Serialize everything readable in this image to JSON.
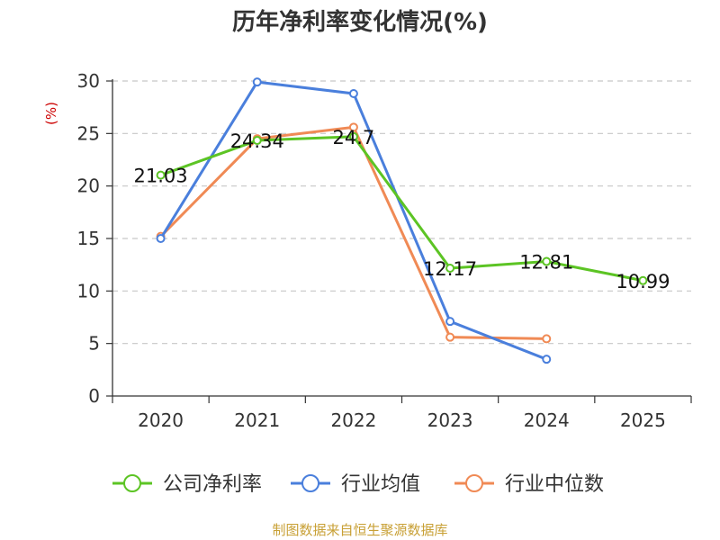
{
  "title": "历年净利率变化情况(%)",
  "source_note": "制图数据来自恒生聚源数据库",
  "chart_data": {
    "type": "line",
    "ylabel": "(%)",
    "ylim": [
      0,
      30
    ],
    "yticks": [
      0,
      5,
      10,
      15,
      20,
      25,
      30
    ],
    "categories": [
      "2020",
      "2021",
      "2022",
      "2023",
      "2024",
      "2025"
    ],
    "grid": true,
    "legend_position": "bottom",
    "series": [
      {
        "name": "公司净利率",
        "color": "#5cc424",
        "values": [
          21.03,
          24.34,
          24.7,
          12.17,
          12.81,
          10.99
        ],
        "labels": [
          "21.03",
          "24.34",
          "24.7",
          "12.17",
          "12.81",
          "10.99"
        ]
      },
      {
        "name": "行业均值",
        "color": "#4a7fdc",
        "values": [
          15.0,
          29.9,
          28.8,
          7.1,
          3.5,
          null
        ]
      },
      {
        "name": "行业中位数",
        "color": "#f08a55",
        "values": [
          15.2,
          24.5,
          25.6,
          5.6,
          5.45,
          null
        ]
      }
    ]
  }
}
